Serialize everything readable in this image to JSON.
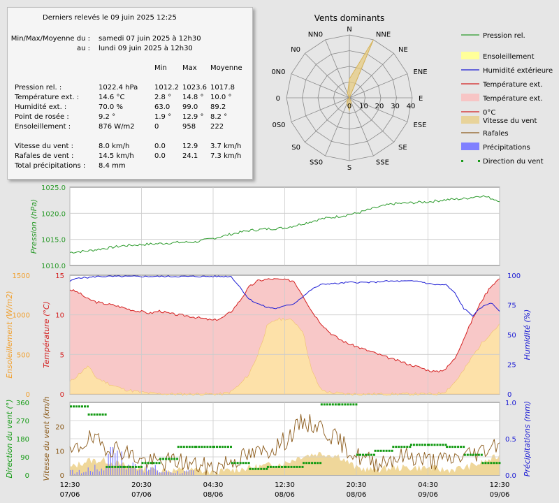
{
  "summary": {
    "title": "Derniers relevés le 09 juin 2025 12:25",
    "period_from_label": "Min/Max/Moyenne du :",
    "period_from": "samedi 07 juin 2025 à 12h30",
    "period_to_label": "au :",
    "period_to": "lundi 09 juin 2025 à 12h30",
    "col_min": "Min",
    "col_max": "Max",
    "col_avg": "Moyenne",
    "rows": [
      {
        "label": "Pression rel. :",
        "current": "1022.4 hPa",
        "min": "1012.2",
        "max": "1023.6",
        "avg": "1017.8"
      },
      {
        "label": "Température ext. :",
        "current": "14.6 °C",
        "min": "2.8 °",
        "max": "14.8 °",
        "avg": "10.0 °"
      },
      {
        "label": "Humidité ext. :",
        "current": "70.0 %",
        "min": "63.0",
        "max": "99.0",
        "avg": "89.2"
      },
      {
        "label": "Point de rosée :",
        "current": "9.2 °",
        "min": "1.9 °",
        "max": "12.9 °",
        "avg": "8.2 °"
      },
      {
        "label": "Ensoleillement :",
        "current": "876 W/m2",
        "min": "0",
        "max": "958",
        "avg": "222"
      },
      {
        "label": "Vitesse du vent :",
        "current": "8.0 km/h",
        "min": "0.0",
        "max": "12.9",
        "avg": "3.7 km/h"
      },
      {
        "label": "Rafales de vent :",
        "current": "14.5 km/h",
        "min": "0.0",
        "max": "24.1",
        "avg": "7.3 km/h"
      },
      {
        "label": "Total précipitations :",
        "current": "8.4 mm",
        "min": "",
        "max": "",
        "avg": ""
      }
    ]
  },
  "legend": {
    "items": [
      {
        "label": "Pression rel.",
        "kind": "line",
        "color": "#2a9a2a"
      },
      {
        "label": "Ensoleillement",
        "kind": "box",
        "color": "#ffff99"
      },
      {
        "label": "Humidité extérieure",
        "kind": "line",
        "color": "#1a1ad4"
      },
      {
        "label": "Température ext.",
        "kind": "line",
        "color": "#d42020"
      },
      {
        "label": "Température ext.",
        "kind": "box",
        "color": "#f7c5c5"
      },
      {
        "label": "0°C",
        "kind": "line",
        "color": "#d42020"
      },
      {
        "label": "Vitesse du vent",
        "kind": "box",
        "color": "#e8d39a"
      },
      {
        "label": "Rafales",
        "kind": "line",
        "color": "#8b5a1a"
      },
      {
        "label": "Précipitations",
        "kind": "box",
        "color": "#8080ff"
      },
      {
        "label": "Direction du vent",
        "kind": "dots",
        "color": "#1a9a1a"
      }
    ]
  },
  "colors": {
    "pressure": "#2a9a2a",
    "temperature": "#d42020",
    "temperature_fill": "#f8c8c8",
    "humidity": "#1a1ad4",
    "sun_fill": "#fde3a8",
    "sun_line": "#f0c070",
    "wind_fill": "#efd79a",
    "gust": "#8b5a1a",
    "rain": "#8080ff",
    "direction": "#129a12",
    "axis_orange": "#f0a030"
  },
  "chart_data": [
    {
      "type": "radar",
      "title": "Vents dominants",
      "directions": [
        "N",
        "NNE",
        "NE",
        "ENE",
        "E",
        "ESE",
        "SE",
        "SSE",
        "S",
        "SSO",
        "SO",
        "OSO",
        "O",
        "ONO",
        "NO",
        "NNO"
      ],
      "direction_labels": [
        "N",
        "NNE",
        "NE",
        "ENE",
        "E",
        "ESE",
        "SE",
        "SSE",
        "S",
        "SS0",
        "S0",
        "0S0",
        "0",
        "0N0",
        "N0",
        "NN0"
      ],
      "values": [
        12,
        40,
        0,
        0,
        0,
        0,
        0,
        3,
        8,
        4,
        2,
        0,
        0,
        0,
        0,
        3
      ],
      "radial_ticks": [
        "0",
        "10",
        "20",
        "30",
        "40"
      ],
      "rmax": 40
    },
    {
      "type": "line",
      "ylabel": "Pression (hPa)",
      "ylim": [
        1010,
        1025
      ],
      "yticks": [
        "1010.0",
        "1015.0",
        "1020.0",
        "1025.0"
      ],
      "grid": true,
      "x_hours": [
        0,
        2,
        4,
        6,
        8,
        10,
        12,
        14,
        16,
        18,
        20,
        22,
        24,
        26,
        28,
        30,
        32,
        34,
        36,
        38,
        40,
        42,
        44,
        46,
        48
      ],
      "series": [
        {
          "name": "Pression rel.",
          "values": [
            1012.5,
            1012.8,
            1013.3,
            1013.8,
            1014.0,
            1014.2,
            1014.4,
            1014.5,
            1015.2,
            1016.0,
            1016.7,
            1017.0,
            1017.2,
            1018.0,
            1018.9,
            1019.4,
            1020.0,
            1021.0,
            1021.8,
            1022.0,
            1022.2,
            1022.6,
            1022.8,
            1023.4,
            1022.4
          ]
        }
      ]
    },
    {
      "type": "line",
      "ylabel_left_outer": "Ensoleillement  (W/m2)",
      "ylabel_left": "Température (°C)",
      "ylabel_right": "Humidité (%)",
      "ylim_sun": [
        0,
        1500
      ],
      "ylim_temp": [
        0,
        15
      ],
      "ylim_hum": [
        0,
        100
      ],
      "yticks_sun": [
        "0",
        "500",
        "1000",
        "1500"
      ],
      "yticks_temp": [
        "0",
        "5",
        "10",
        "15"
      ],
      "yticks_hum": [
        "0",
        "25",
        "50",
        "75",
        "100"
      ],
      "grid": true,
      "x_hours": [
        0,
        1,
        2,
        3,
        4,
        5,
        6,
        7,
        8,
        9,
        10,
        11,
        12,
        13,
        14,
        15,
        16,
        17,
        18,
        19,
        20,
        21,
        22,
        23,
        24,
        25,
        26,
        27,
        28,
        29,
        30,
        31,
        32,
        33,
        34,
        35,
        36,
        37,
        38,
        39,
        40,
        41,
        42,
        43,
        44,
        45,
        46,
        47,
        48
      ],
      "series": [
        {
          "name": "Température ext.",
          "values": [
            13.2,
            12.8,
            12.0,
            11.6,
            11.4,
            11.2,
            10.9,
            10.6,
            10.4,
            10.2,
            10.5,
            10.2,
            10.0,
            9.9,
            9.7,
            9.5,
            9.3,
            9.6,
            10.4,
            11.8,
            13.5,
            14.3,
            14.5,
            14.5,
            14.4,
            14.3,
            12.5,
            10.5,
            9.0,
            7.8,
            7.0,
            6.4,
            6.0,
            5.6,
            5.2,
            4.8,
            4.4,
            4.1,
            3.7,
            3.4,
            3.0,
            2.8,
            3.2,
            4.5,
            7.0,
            9.5,
            11.8,
            13.6,
            14.6
          ]
        },
        {
          "name": "Humidité extérieure",
          "values": [
            95,
            98,
            98,
            99,
            99,
            99,
            99,
            99,
            99,
            99,
            99,
            99,
            99,
            99,
            99,
            99,
            99,
            99,
            99,
            90,
            80,
            76,
            73,
            72,
            74,
            76,
            82,
            88,
            92,
            93,
            93,
            94,
            94,
            94,
            94,
            95,
            95,
            95,
            95,
            95,
            93,
            92,
            92,
            85,
            72,
            66,
            73,
            77,
            70
          ]
        },
        {
          "name": "Ensoleillement",
          "values": [
            150,
            250,
            350,
            200,
            150,
            100,
            60,
            40,
            20,
            10,
            5,
            0,
            0,
            0,
            0,
            0,
            0,
            0,
            30,
            120,
            250,
            500,
            850,
            940,
            950,
            920,
            800,
            300,
            60,
            20,
            10,
            0,
            0,
            0,
            0,
            0,
            0,
            0,
            0,
            0,
            0,
            0,
            40,
            150,
            300,
            480,
            640,
            770,
            876
          ]
        }
      ]
    },
    {
      "type": "line",
      "ylabel_left_outer": "Direction du vent (°)",
      "ylabel_left": "Vitesse du vent (km/h",
      "ylabel_right": "Précipitations (mm)",
      "ylim_dir": [
        0,
        360
      ],
      "ylim_speed": [
        0,
        30
      ],
      "ylim_rain": [
        0,
        1
      ],
      "yticks_dir": [
        "0",
        "90",
        "180",
        "270",
        "360"
      ],
      "yticks_speed": [
        "0",
        "10",
        "20"
      ],
      "yticks_rain": [
        "0.0",
        "0.5",
        "1.0"
      ],
      "grid": true,
      "x_ticks": [
        {
          "time": "12:30",
          "date": "07/06"
        },
        {
          "time": "20:30",
          "date": "07/06"
        },
        {
          "time": "04:30",
          "date": "08/06"
        },
        {
          "time": "12:30",
          "date": "08/06"
        },
        {
          "time": "20:30",
          "date": "08/06"
        },
        {
          "time": "04:30",
          "date": "09/06"
        },
        {
          "time": "12:30",
          "date": "09/06"
        }
      ],
      "x_hours": [
        0,
        2,
        4,
        6,
        8,
        10,
        12,
        14,
        16,
        18,
        20,
        22,
        24,
        26,
        28,
        30,
        32,
        34,
        36,
        38,
        40,
        42,
        44,
        46,
        48
      ],
      "series": [
        {
          "name": "Vitesse du vent",
          "values": [
            3,
            6,
            6,
            4,
            3,
            2,
            2,
            2,
            1,
            2,
            3,
            4,
            5,
            8,
            9,
            8,
            3,
            2,
            3,
            3,
            3,
            2,
            3,
            5,
            8
          ]
        },
        {
          "name": "Rafales",
          "values": [
            8,
            15,
            12,
            10,
            6,
            5,
            6,
            4,
            3,
            6,
            8,
            10,
            14,
            22,
            20,
            14,
            8,
            5,
            7,
            8,
            6,
            6,
            8,
            10,
            14
          ]
        },
        {
          "name": "Précipitations",
          "values": [
            0.05,
            0.1,
            0.25,
            0.15,
            0.1,
            0.05,
            0.05,
            0.0,
            0.0,
            0.0,
            0.0,
            0.0,
            0.0,
            0.0,
            0.0,
            0.0,
            0.0,
            0.0,
            0.0,
            0.0,
            0.0,
            0.0,
            0.0,
            0.0,
            0.0
          ]
        },
        {
          "name": "Direction du vent",
          "values": [
            340,
            300,
            40,
            40,
            60,
            80,
            140,
            140,
            140,
            60,
            30,
            40,
            40,
            60,
            350,
            350,
            100,
            120,
            140,
            150,
            150,
            140,
            100,
            60,
            40
          ]
        }
      ]
    }
  ]
}
